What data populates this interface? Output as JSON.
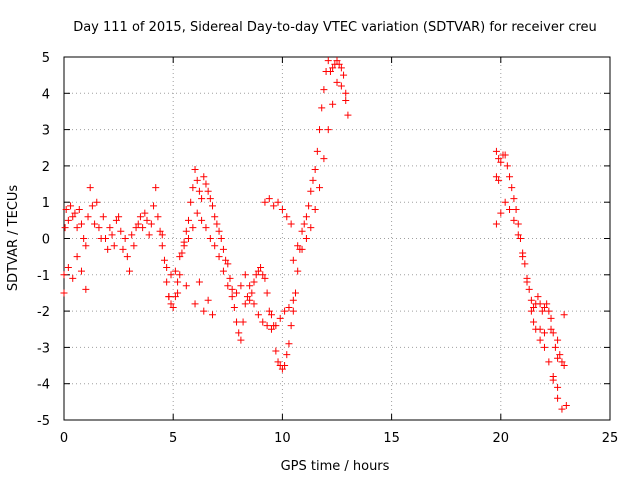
{
  "chart_data": {
    "type": "scatter",
    "title": "Day 111 of 2015, Sidereal Day-to-day VTEC variation (SDTVAR) for receiver creu",
    "xlabel": "GPS time / hours",
    "ylabel": "SDTVAR / TECUs",
    "xlim": [
      0,
      25
    ],
    "ylim": [
      -5,
      5
    ],
    "xticks": [
      "0",
      "5",
      "10",
      "15",
      "20",
      "25"
    ],
    "yticks": [
      "-5",
      "-4",
      "-3",
      "-2",
      "-1",
      "0",
      "1",
      "2",
      "3",
      "4",
      "5"
    ],
    "grid": true,
    "marker": "plus",
    "color": "#ff0000",
    "series": [
      {
        "name": "SDTVAR",
        "points": [
          [
            0.0,
            -1.5
          ],
          [
            0.05,
            0.3
          ],
          [
            0.1,
            0.8
          ],
          [
            0.2,
            0.5
          ],
          [
            0.3,
            0.9
          ],
          [
            0.4,
            0.6
          ],
          [
            0.5,
            0.7
          ],
          [
            0.6,
            0.3
          ],
          [
            0.7,
            0.8
          ],
          [
            0.8,
            0.4
          ],
          [
            0.9,
            0.0
          ],
          [
            1.0,
            -0.2
          ],
          [
            1.1,
            0.6
          ],
          [
            1.2,
            1.4
          ],
          [
            1.3,
            0.9
          ],
          [
            1.4,
            0.4
          ],
          [
            1.5,
            1.0
          ],
          [
            1.6,
            0.3
          ],
          [
            1.7,
            0.0
          ],
          [
            1.8,
            0.6
          ],
          [
            1.9,
            0.0
          ],
          [
            2.0,
            -0.3
          ],
          [
            2.1,
            0.3
          ],
          [
            2.2,
            0.1
          ],
          [
            2.3,
            -0.2
          ],
          [
            2.4,
            0.5
          ],
          [
            2.5,
            0.6
          ],
          [
            2.6,
            0.2
          ],
          [
            2.7,
            -0.3
          ],
          [
            2.8,
            0.0
          ],
          [
            2.9,
            -0.5
          ],
          [
            3.0,
            -0.9
          ],
          [
            3.1,
            0.1
          ],
          [
            3.2,
            -0.2
          ],
          [
            3.3,
            0.3
          ],
          [
            3.4,
            0.4
          ],
          [
            3.5,
            0.6
          ],
          [
            3.6,
            0.3
          ],
          [
            3.7,
            0.7
          ],
          [
            3.8,
            0.5
          ],
          [
            3.9,
            0.1
          ],
          [
            4.0,
            0.4
          ],
          [
            4.1,
            0.9
          ],
          [
            4.2,
            1.4
          ],
          [
            4.3,
            0.6
          ],
          [
            4.4,
            0.2
          ],
          [
            4.5,
            0.1
          ],
          [
            4.6,
            -0.6
          ],
          [
            4.7,
            -1.2
          ],
          [
            4.8,
            -1.6
          ],
          [
            4.9,
            -1.8
          ],
          [
            5.0,
            -1.9
          ],
          [
            5.1,
            -1.6
          ],
          [
            5.2,
            -1.2
          ],
          [
            5.3,
            -1.0
          ],
          [
            5.4,
            -0.4
          ],
          [
            5.5,
            -0.1
          ],
          [
            5.6,
            0.2
          ],
          [
            5.7,
            0.5
          ],
          [
            5.8,
            1.0
          ],
          [
            5.9,
            1.4
          ],
          [
            6.0,
            1.9
          ],
          [
            6.1,
            1.6
          ],
          [
            6.2,
            1.3
          ],
          [
            6.3,
            1.1
          ],
          [
            6.4,
            1.7
          ],
          [
            6.5,
            1.5
          ],
          [
            6.6,
            1.3
          ],
          [
            6.7,
            1.1
          ],
          [
            6.8,
            0.9
          ],
          [
            6.9,
            0.6
          ],
          [
            7.0,
            0.4
          ],
          [
            7.1,
            0.2
          ],
          [
            7.2,
            0.0
          ],
          [
            7.3,
            -0.3
          ],
          [
            7.4,
            -0.6
          ],
          [
            7.5,
            -0.7
          ],
          [
            7.6,
            -1.1
          ],
          [
            7.7,
            -1.4
          ],
          [
            7.8,
            -1.9
          ],
          [
            7.9,
            -2.3
          ],
          [
            8.0,
            -2.6
          ],
          [
            8.1,
            -2.8
          ],
          [
            8.2,
            -2.3
          ],
          [
            8.3,
            -1.8
          ],
          [
            8.4,
            -1.6
          ],
          [
            8.5,
            -1.7
          ],
          [
            8.6,
            -1.5
          ],
          [
            8.7,
            -1.2
          ],
          [
            8.8,
            -1.0
          ],
          [
            8.9,
            -0.9
          ],
          [
            9.0,
            -0.8
          ],
          [
            9.1,
            -1.0
          ],
          [
            9.2,
            -1.1
          ],
          [
            9.3,
            -1.5
          ],
          [
            9.4,
            -2.0
          ],
          [
            9.5,
            -2.1
          ],
          [
            9.6,
            -2.4
          ],
          [
            9.7,
            -3.1
          ],
          [
            9.8,
            -3.4
          ],
          [
            9.9,
            -3.5
          ],
          [
            10.0,
            -3.6
          ],
          [
            10.1,
            -3.5
          ],
          [
            10.2,
            -3.2
          ],
          [
            10.3,
            -2.9
          ],
          [
            10.4,
            -2.4
          ],
          [
            10.5,
            -2.0
          ],
          [
            10.6,
            -1.5
          ],
          [
            10.7,
            -0.9
          ],
          [
            10.8,
            -0.3
          ],
          [
            10.9,
            0.2
          ],
          [
            11.0,
            0.4
          ],
          [
            11.1,
            0.6
          ],
          [
            11.2,
            0.9
          ],
          [
            11.3,
            1.3
          ],
          [
            11.4,
            1.6
          ],
          [
            11.5,
            1.9
          ],
          [
            11.6,
            2.4
          ],
          [
            11.7,
            3.0
          ],
          [
            11.8,
            3.6
          ],
          [
            11.9,
            4.1
          ],
          [
            12.0,
            4.6
          ],
          [
            12.1,
            4.9
          ],
          [
            12.2,
            4.6
          ],
          [
            12.3,
            4.7
          ],
          [
            12.4,
            4.8
          ],
          [
            12.5,
            4.9
          ],
          [
            12.6,
            4.8
          ],
          [
            12.7,
            4.7
          ],
          [
            12.8,
            4.5
          ],
          [
            12.9,
            4.0
          ],
          [
            13.0,
            3.4
          ],
          [
            0.0,
            -1.0
          ],
          [
            0.2,
            -0.8
          ],
          [
            0.4,
            -1.1
          ],
          [
            0.6,
            -0.5
          ],
          [
            0.8,
            -0.9
          ],
          [
            1.0,
            -1.4
          ],
          [
            4.5,
            -0.2
          ],
          [
            4.7,
            -0.8
          ],
          [
            4.9,
            -1.0
          ],
          [
            5.1,
            -0.9
          ],
          [
            5.3,
            -0.5
          ],
          [
            5.5,
            -0.2
          ],
          [
            5.7,
            0.0
          ],
          [
            5.9,
            0.3
          ],
          [
            6.1,
            0.7
          ],
          [
            6.3,
            0.5
          ],
          [
            6.5,
            0.3
          ],
          [
            6.7,
            0.0
          ],
          [
            6.9,
            -0.2
          ],
          [
            7.1,
            -0.5
          ],
          [
            7.3,
            -0.9
          ],
          [
            7.5,
            -1.3
          ],
          [
            7.7,
            -1.6
          ],
          [
            7.9,
            -1.5
          ],
          [
            8.1,
            -1.3
          ],
          [
            8.3,
            -1.0
          ],
          [
            8.5,
            -1.3
          ],
          [
            8.7,
            -1.8
          ],
          [
            8.9,
            -2.1
          ],
          [
            9.1,
            -2.3
          ],
          [
            9.3,
            -2.4
          ],
          [
            9.5,
            -2.5
          ],
          [
            9.7,
            -2.4
          ],
          [
            9.9,
            -2.2
          ],
          [
            10.1,
            -2.0
          ],
          [
            10.3,
            -1.9
          ],
          [
            10.5,
            -1.7
          ],
          [
            4.8,
            -1.6
          ],
          [
            5.2,
            -1.5
          ],
          [
            5.6,
            -1.3
          ],
          [
            6.0,
            -1.8
          ],
          [
            6.4,
            -2.0
          ],
          [
            6.8,
            -2.1
          ],
          [
            6.2,
            -1.2
          ],
          [
            6.6,
            -1.7
          ],
          [
            9.2,
            1.0
          ],
          [
            9.4,
            1.1
          ],
          [
            9.6,
            0.9
          ],
          [
            9.8,
            1.0
          ],
          [
            10.0,
            0.8
          ],
          [
            10.2,
            0.6
          ],
          [
            10.4,
            0.4
          ],
          [
            10.5,
            -0.6
          ],
          [
            10.7,
            -0.2
          ],
          [
            10.9,
            -0.3
          ],
          [
            11.1,
            0.0
          ],
          [
            11.3,
            0.3
          ],
          [
            11.5,
            0.8
          ],
          [
            11.7,
            1.4
          ],
          [
            11.9,
            2.2
          ],
          [
            12.1,
            3.0
          ],
          [
            12.3,
            3.7
          ],
          [
            12.5,
            4.3
          ],
          [
            12.7,
            4.2
          ],
          [
            12.9,
            3.8
          ],
          [
            19.8,
            2.4
          ],
          [
            19.9,
            2.2
          ],
          [
            20.0,
            2.1
          ],
          [
            20.1,
            2.3
          ],
          [
            20.2,
            2.3
          ],
          [
            20.3,
            2.0
          ],
          [
            20.4,
            1.7
          ],
          [
            20.5,
            1.4
          ],
          [
            20.6,
            1.1
          ],
          [
            20.7,
            0.8
          ],
          [
            20.8,
            0.4
          ],
          [
            20.9,
            0.0
          ],
          [
            21.0,
            -0.4
          ],
          [
            21.1,
            -0.7
          ],
          [
            21.2,
            -1.1
          ],
          [
            21.3,
            -1.4
          ],
          [
            21.4,
            -1.7
          ],
          [
            21.5,
            -1.9
          ],
          [
            21.6,
            -1.8
          ],
          [
            21.7,
            -1.6
          ],
          [
            21.8,
            -1.8
          ],
          [
            21.9,
            -2.0
          ],
          [
            22.0,
            -1.9
          ],
          [
            22.1,
            -1.8
          ],
          [
            22.2,
            -2.0
          ],
          [
            22.3,
            -2.2
          ],
          [
            22.4,
            -2.6
          ],
          [
            22.5,
            -3.0
          ],
          [
            22.6,
            -3.3
          ],
          [
            22.7,
            -3.2
          ],
          [
            22.8,
            -3.4
          ],
          [
            22.9,
            -3.5
          ],
          [
            19.8,
            1.7
          ],
          [
            19.9,
            1.6
          ],
          [
            19.8,
            0.4
          ],
          [
            20.0,
            0.7
          ],
          [
            20.2,
            1.0
          ],
          [
            20.4,
            0.8
          ],
          [
            20.6,
            0.5
          ],
          [
            20.8,
            0.1
          ],
          [
            21.0,
            -0.5
          ],
          [
            21.2,
            -1.2
          ],
          [
            21.4,
            -2.0
          ],
          [
            21.6,
            -2.5
          ],
          [
            21.8,
            -2.8
          ],
          [
            22.0,
            -3.0
          ],
          [
            22.2,
            -3.4
          ],
          [
            22.4,
            -3.8
          ],
          [
            22.6,
            -4.4
          ],
          [
            22.8,
            -4.7
          ],
          [
            23.0,
            -4.6
          ],
          [
            21.5,
            -2.3
          ],
          [
            21.8,
            -2.5
          ],
          [
            22.0,
            -2.6
          ],
          [
            22.3,
            -2.5
          ],
          [
            22.6,
            -2.8
          ],
          [
            22.9,
            -2.1
          ],
          [
            22.6,
            -4.1
          ],
          [
            22.4,
            -3.9
          ]
        ]
      }
    ]
  }
}
